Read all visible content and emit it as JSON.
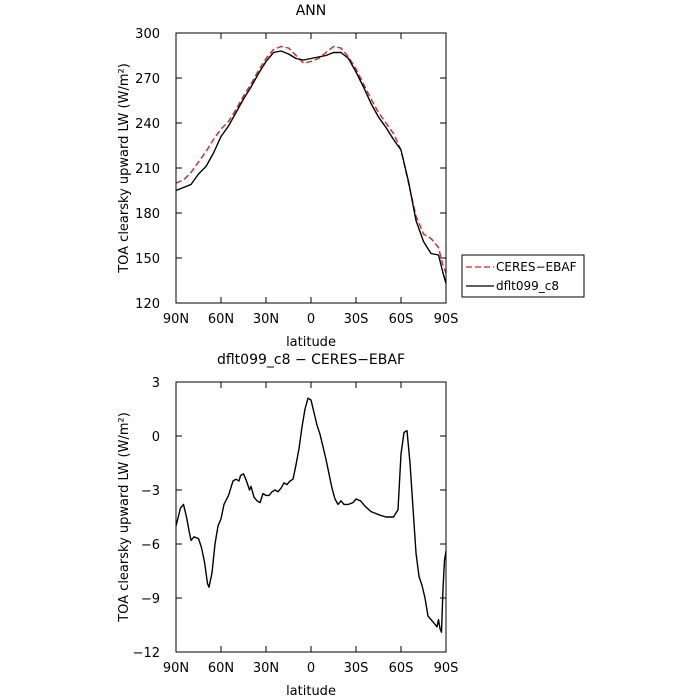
{
  "chart_data": [
    {
      "type": "line",
      "title": "ANN",
      "xlabel": "latitude",
      "ylabel": "TOA clearsky upward LW (W/m²)",
      "xlim": [
        90,
        -90
      ],
      "ylim": [
        120,
        300
      ],
      "x_ticks": [
        90,
        60,
        30,
        0,
        -30,
        -60,
        -90
      ],
      "x_tick_labels": [
        "90N",
        "60N",
        "30N",
        "0",
        "30S",
        "60S",
        "90S"
      ],
      "y_ticks": [
        120,
        150,
        180,
        210,
        240,
        270,
        300
      ],
      "y_tick_labels": [
        "120",
        "150",
        "180",
        "210",
        "240",
        "270",
        "300"
      ],
      "legend": "outside-right",
      "grid": false,
      "series": [
        {
          "name": "CERES−EBAF",
          "color": "#e41a1c",
          "dash": "dashed",
          "x": [
            90,
            85,
            80,
            75,
            70,
            65,
            60,
            55,
            50,
            45,
            40,
            35,
            30,
            25,
            20,
            15,
            10,
            5,
            0,
            -5,
            -10,
            -15,
            -20,
            -25,
            -30,
            -35,
            -40,
            -45,
            -50,
            -55,
            -60,
            -65,
            -70,
            -75,
            -80,
            -85,
            -88,
            -90
          ],
          "y": [
            200,
            202,
            207,
            214,
            221,
            229,
            236,
            241,
            249,
            258,
            266,
            275,
            283,
            289,
            291,
            290,
            285,
            280,
            281,
            283,
            287,
            291,
            290,
            284,
            276,
            266,
            256,
            247,
            240,
            233,
            222,
            200,
            178,
            166,
            163,
            157,
            145,
            140
          ]
        },
        {
          "name": "dflt099_c8",
          "color": "#000000",
          "dash": "solid",
          "x": [
            90,
            85,
            80,
            75,
            70,
            65,
            60,
            55,
            50,
            45,
            40,
            35,
            30,
            25,
            20,
            15,
            10,
            5,
            0,
            -5,
            -10,
            -15,
            -20,
            -25,
            -30,
            -35,
            -40,
            -45,
            -50,
            -55,
            -60,
            -65,
            -70,
            -75,
            -80,
            -85,
            -88,
            -90
          ],
          "y": [
            195,
            197,
            199,
            206,
            211,
            220,
            231,
            238,
            247,
            256,
            264,
            273,
            281,
            287,
            288,
            286,
            283,
            282,
            283,
            284,
            285,
            287,
            287,
            283,
            274,
            264,
            253,
            244,
            237,
            229,
            222,
            201,
            175,
            161,
            153,
            152,
            140,
            133
          ]
        }
      ]
    },
    {
      "type": "line",
      "title": "dflt099_c8 − CERES−EBAF",
      "xlabel": "latitude",
      "ylabel": "TOA clearsky upward LW (W/m²)",
      "xlim": [
        90,
        -90
      ],
      "ylim": [
        -12,
        3
      ],
      "x_ticks": [
        90,
        60,
        30,
        0,
        -30,
        -60,
        -90
      ],
      "x_tick_labels": [
        "90N",
        "60N",
        "30N",
        "0",
        "30S",
        "60S",
        "90S"
      ],
      "y_ticks": [
        -12,
        -9,
        -6,
        -3,
        0,
        3
      ],
      "y_tick_labels": [
        "−12",
        "−9",
        "−6",
        "−3",
        "0",
        "3"
      ],
      "grid": false,
      "series": [
        {
          "color": "#000000",
          "dash": "solid",
          "x": [
            90,
            87,
            85,
            83,
            81,
            80,
            78,
            75,
            73,
            71,
            70,
            69,
            68,
            66,
            64,
            62,
            60,
            58,
            55,
            52,
            50,
            48,
            47,
            45,
            43,
            41,
            40,
            38,
            36,
            34,
            32,
            30,
            28,
            26,
            24,
            22,
            20,
            18,
            16,
            14,
            12,
            10,
            8,
            6,
            5,
            4,
            2,
            0,
            -2,
            -4,
            -6,
            -8,
            -10,
            -12,
            -14,
            -16,
            -18,
            -20,
            -22,
            -25,
            -28,
            -30,
            -33,
            -36,
            -40,
            -43,
            -46,
            -50,
            -53,
            -55,
            -58,
            -60,
            -62,
            -64,
            -66,
            -68,
            -70,
            -72,
            -74,
            -76,
            -78,
            -80,
            -82,
            -84,
            -85,
            -86,
            -87,
            -88,
            -89,
            -90
          ],
          "y": [
            -5.0,
            -4.0,
            -3.8,
            -4.5,
            -5.4,
            -5.8,
            -5.6,
            -5.7,
            -6.2,
            -7.0,
            -7.6,
            -8.2,
            -8.4,
            -7.6,
            -6.0,
            -5.0,
            -4.6,
            -3.8,
            -3.3,
            -2.5,
            -2.4,
            -2.5,
            -2.2,
            -2.1,
            -2.5,
            -3.0,
            -2.8,
            -3.4,
            -3.6,
            -3.7,
            -3.2,
            -3.3,
            -3.3,
            -3.1,
            -3.0,
            -3.1,
            -2.9,
            -2.6,
            -2.7,
            -2.5,
            -2.4,
            -1.6,
            -0.7,
            0.5,
            1.0,
            1.5,
            2.1,
            2.0,
            1.3,
            0.6,
            0.1,
            -0.6,
            -1.3,
            -2.1,
            -2.9,
            -3.5,
            -3.8,
            -3.6,
            -3.8,
            -3.8,
            -3.7,
            -3.5,
            -3.6,
            -3.9,
            -4.2,
            -4.3,
            -4.4,
            -4.5,
            -4.5,
            -4.5,
            -4.1,
            -1.0,
            0.2,
            0.3,
            -1.5,
            -4.0,
            -6.5,
            -7.8,
            -8.3,
            -9.0,
            -10.0,
            -10.2,
            -10.4,
            -10.6,
            -10.2,
            -10.7,
            -10.9,
            -8.5,
            -6.9,
            -6.4
          ]
        }
      ]
    }
  ]
}
